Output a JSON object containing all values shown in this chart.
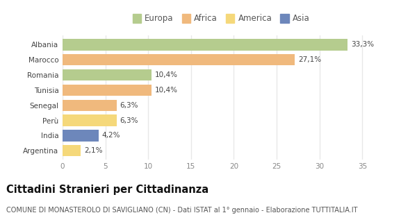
{
  "categories": [
    "Albania",
    "Marocco",
    "Romania",
    "Tunisia",
    "Senegal",
    "Perù",
    "India",
    "Argentina"
  ],
  "values": [
    33.3,
    27.1,
    10.4,
    10.4,
    6.3,
    6.3,
    4.2,
    2.1
  ],
  "labels": [
    "33,3%",
    "27,1%",
    "10,4%",
    "10,4%",
    "6,3%",
    "6,3%",
    "4,2%",
    "2,1%"
  ],
  "colors": [
    "#b5cc8e",
    "#f0b97d",
    "#b5cc8e",
    "#f0b97d",
    "#f0b97d",
    "#f5d87a",
    "#6d87bb",
    "#f5d87a"
  ],
  "legend": [
    {
      "label": "Europa",
      "color": "#b5cc8e"
    },
    {
      "label": "Africa",
      "color": "#f0b97d"
    },
    {
      "label": "America",
      "color": "#f5d87a"
    },
    {
      "label": "Asia",
      "color": "#6d87bb"
    }
  ],
  "xlim": [
    0,
    37
  ],
  "xticks": [
    0,
    5,
    10,
    15,
    20,
    25,
    30,
    35
  ],
  "title": "Cittadini Stranieri per Cittadinanza",
  "subtitle": "COMUNE DI MONASTEROLO DI SAVIGLIANO (CN) - Dati ISTAT al 1° gennaio - Elaborazione TUTTITALIA.IT",
  "background_color": "#ffffff",
  "plot_bg_color": "#ffffff",
  "grid_color": "#e8e8e8",
  "bar_height": 0.75,
  "title_fontsize": 10.5,
  "subtitle_fontsize": 7,
  "label_fontsize": 7.5,
  "tick_fontsize": 7.5,
  "legend_fontsize": 8.5
}
